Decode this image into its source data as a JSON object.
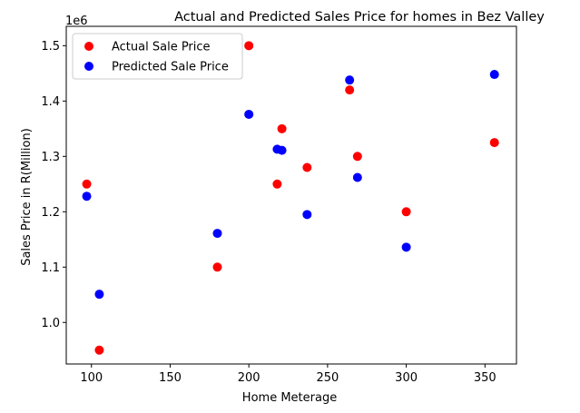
{
  "chart_data": {
    "type": "scatter",
    "title": "Actual and Predicted Sales Price for homes in Bez Valley",
    "xlabel": "Home Meterage",
    "ylabel": "Sales Price in R(Million)",
    "offset_label": "1e6",
    "xlim": [
      84,
      370
    ],
    "ylim": [
      0.925,
      1.535
    ],
    "x_ticks": [
      100,
      150,
      200,
      250,
      300,
      350
    ],
    "y_ticks": [
      1.0,
      1.1,
      1.2,
      1.3,
      1.4,
      1.5
    ],
    "x_tick_labels": [
      "100",
      "150",
      "200",
      "250",
      "300",
      "350"
    ],
    "y_tick_labels": [
      "1.0",
      "1.1",
      "1.2",
      "1.3",
      "1.4",
      "1.5"
    ],
    "grid": false,
    "legend_position": "top-left",
    "series": [
      {
        "name": "Actual Sale Price",
        "color": "#ff0000",
        "points": [
          {
            "x": 97,
            "y": 1.25
          },
          {
            "x": 105,
            "y": 0.95
          },
          {
            "x": 180,
            "y": 1.1
          },
          {
            "x": 200,
            "y": 1.5
          },
          {
            "x": 218,
            "y": 1.25
          },
          {
            "x": 221,
            "y": 1.35
          },
          {
            "x": 237,
            "y": 1.28
          },
          {
            "x": 264,
            "y": 1.42
          },
          {
            "x": 269,
            "y": 1.3
          },
          {
            "x": 300,
            "y": 1.2
          },
          {
            "x": 356,
            "y": 1.325
          }
        ]
      },
      {
        "name": "Predicted Sale Price",
        "color": "#0000ff",
        "points": [
          {
            "x": 97,
            "y": 1.228
          },
          {
            "x": 105,
            "y": 1.051
          },
          {
            "x": 180,
            "y": 1.161
          },
          {
            "x": 200,
            "y": 1.376
          },
          {
            "x": 218,
            "y": 1.313
          },
          {
            "x": 221,
            "y": 1.311
          },
          {
            "x": 237,
            "y": 1.195
          },
          {
            "x": 264,
            "y": 1.438
          },
          {
            "x": 269,
            "y": 1.262
          },
          {
            "x": 300,
            "y": 1.136
          },
          {
            "x": 356,
            "y": 1.448
          }
        ]
      }
    ]
  }
}
